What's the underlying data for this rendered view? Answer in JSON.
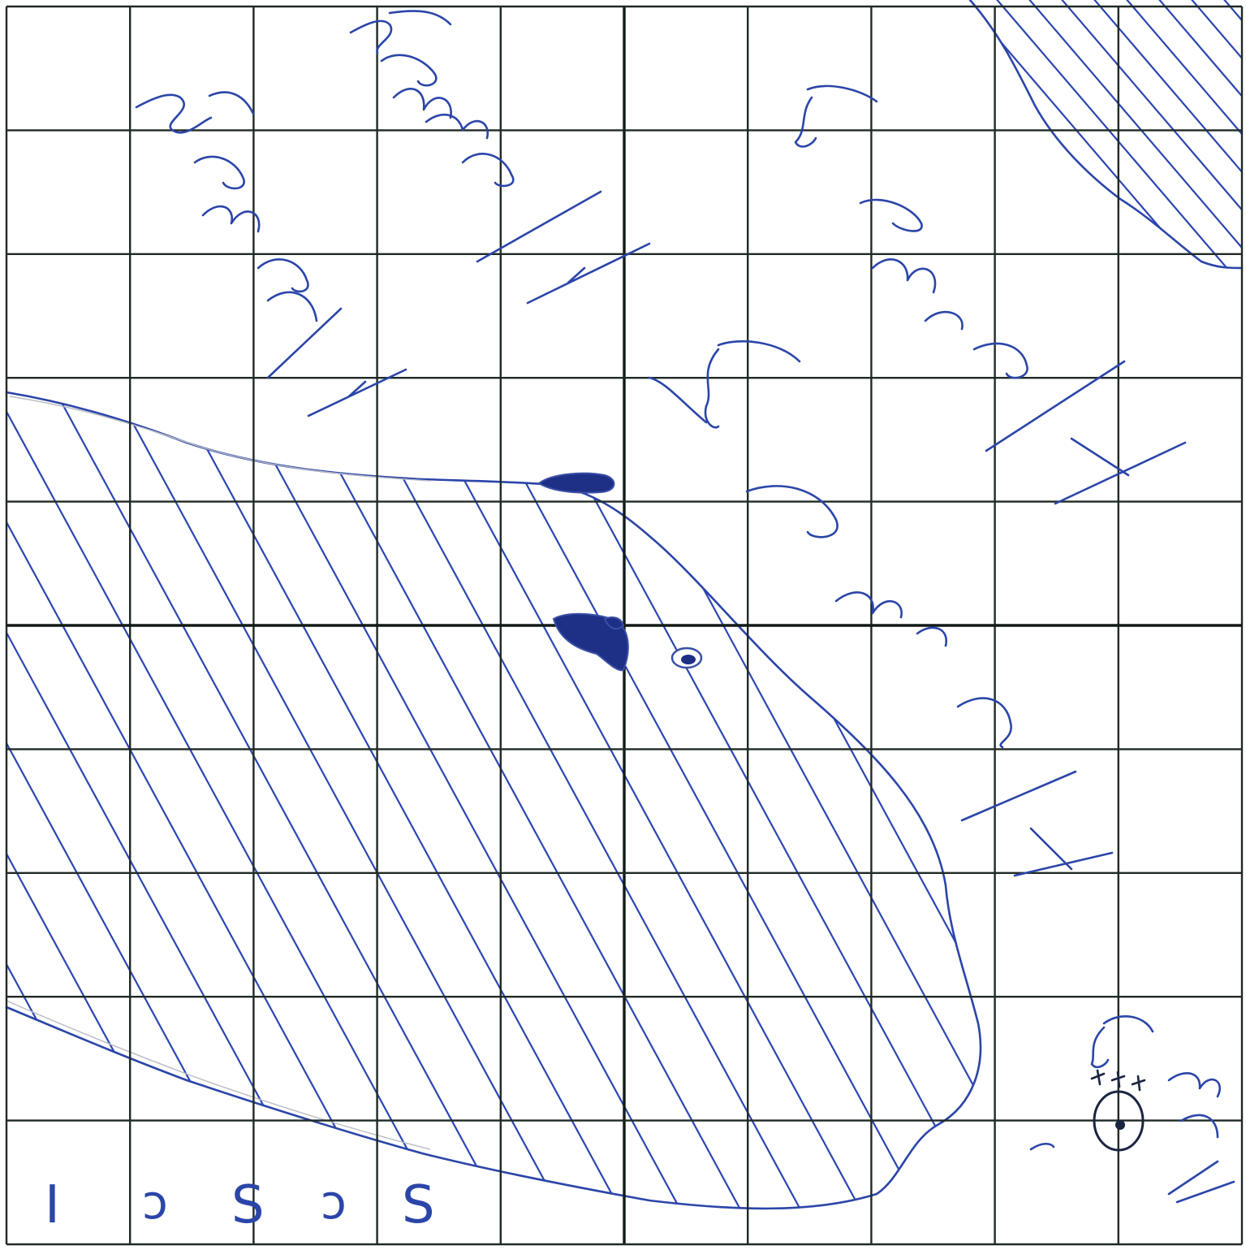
{
  "grid": {
    "columns": 10,
    "rows": 10
  },
  "annotations": {
    "bottom_left_letters": [
      "I",
      "ↄ",
      "S",
      "ↄ",
      "S"
    ]
  },
  "colors": {
    "ink": "#2b45a8",
    "grid": "#1f2a24",
    "paper": "#ffffff"
  }
}
